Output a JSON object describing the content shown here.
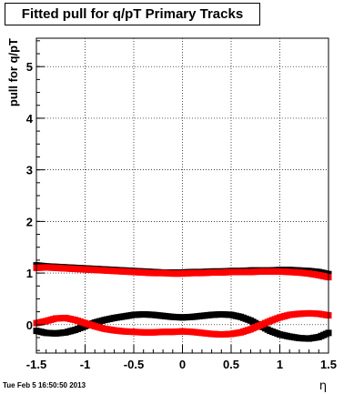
{
  "chart_data": {
    "type": "scatter",
    "title": "Fitted pull for q/pT  Primary Tracks",
    "xlabel": "η",
    "ylabel": "pull for q/pT",
    "xlim": [
      -1.5,
      1.5
    ],
    "ylim": [
      -0.55,
      5.55
    ],
    "xticks": [
      "-1.5",
      "-1",
      "-0.5",
      "0",
      "0.5",
      "1",
      "1.5"
    ],
    "yticks": [
      "0",
      "1",
      "2",
      "3",
      "4",
      "5"
    ],
    "grid": true,
    "series": [
      {
        "color": "#000000",
        "x": [
          -1.5,
          -1.4,
          -1.3,
          -1.2,
          -1.1,
          -1.0,
          -0.9,
          -0.8,
          -0.7,
          -0.6,
          -0.5,
          -0.4,
          -0.3,
          -0.2,
          -0.1,
          0.0,
          0.1,
          0.2,
          0.3,
          0.4,
          0.5,
          0.6,
          0.7,
          0.8,
          0.9,
          1.0,
          1.1,
          1.2,
          1.3,
          1.4,
          1.5
        ],
        "y": [
          1.15,
          1.13,
          1.12,
          1.11,
          1.1,
          1.09,
          1.08,
          1.07,
          1.06,
          1.05,
          1.04,
          1.03,
          1.02,
          1.01,
          1.01,
          1.01,
          1.02,
          1.02,
          1.03,
          1.03,
          1.04,
          1.04,
          1.05,
          1.05,
          1.05,
          1.06,
          1.06,
          1.05,
          1.04,
          1.02,
          0.98
        ]
      },
      {
        "color": "#000000",
        "x": [
          -1.5,
          -1.4,
          -1.3,
          -1.2,
          -1.1,
          -1.0,
          -0.9,
          -0.8,
          -0.7,
          -0.6,
          -0.5,
          -0.4,
          -0.3,
          -0.2,
          -0.1,
          0.0,
          0.1,
          0.2,
          0.3,
          0.4,
          0.5,
          0.6,
          0.7,
          0.8,
          0.9,
          1.0,
          1.1,
          1.2,
          1.3,
          1.4,
          1.5
        ],
        "y": [
          -0.12,
          -0.16,
          -0.17,
          -0.15,
          -0.1,
          -0.03,
          0.04,
          0.09,
          0.13,
          0.16,
          0.19,
          0.2,
          0.19,
          0.17,
          0.15,
          0.14,
          0.15,
          0.17,
          0.19,
          0.2,
          0.19,
          0.15,
          0.08,
          -0.02,
          -0.12,
          -0.19,
          -0.23,
          -0.26,
          -0.27,
          -0.24,
          -0.16
        ]
      },
      {
        "color": "#ff0000",
        "x": [
          -1.5,
          -1.4,
          -1.3,
          -1.2,
          -1.1,
          -1.0,
          -0.9,
          -0.8,
          -0.7,
          -0.6,
          -0.5,
          -0.4,
          -0.3,
          -0.2,
          -0.1,
          0.0,
          0.1,
          0.2,
          0.3,
          0.4,
          0.5,
          0.6,
          0.7,
          0.8,
          0.9,
          1.0,
          1.1,
          1.2,
          1.3,
          1.4,
          1.5
        ],
        "y": [
          1.1,
          1.11,
          1.1,
          1.09,
          1.08,
          1.07,
          1.06,
          1.05,
          1.04,
          1.03,
          1.02,
          1.01,
          1.0,
          1.0,
          0.99,
          0.99,
          1.0,
          1.0,
          1.01,
          1.01,
          1.02,
          1.02,
          1.02,
          1.03,
          1.03,
          1.03,
          1.02,
          1.01,
          0.99,
          0.96,
          0.92
        ]
      },
      {
        "color": "#ff0000",
        "x": [
          -1.5,
          -1.4,
          -1.3,
          -1.2,
          -1.1,
          -1.0,
          -0.9,
          -0.8,
          -0.7,
          -0.6,
          -0.5,
          -0.4,
          -0.3,
          -0.2,
          -0.1,
          0.0,
          0.1,
          0.2,
          0.3,
          0.4,
          0.5,
          0.6,
          0.7,
          0.8,
          0.9,
          1.0,
          1.1,
          1.2,
          1.3,
          1.4,
          1.5
        ],
        "y": [
          0.03,
          0.07,
          0.12,
          0.13,
          0.09,
          0.03,
          -0.03,
          -0.08,
          -0.11,
          -0.13,
          -0.14,
          -0.15,
          -0.15,
          -0.14,
          -0.14,
          -0.13,
          -0.14,
          -0.16,
          -0.18,
          -0.19,
          -0.18,
          -0.15,
          -0.09,
          -0.01,
          0.07,
          0.14,
          0.19,
          0.21,
          0.22,
          0.21,
          0.18
        ]
      }
    ]
  },
  "footer": {
    "timestamp": "Tue Feb  5 16:50:50 2013"
  }
}
